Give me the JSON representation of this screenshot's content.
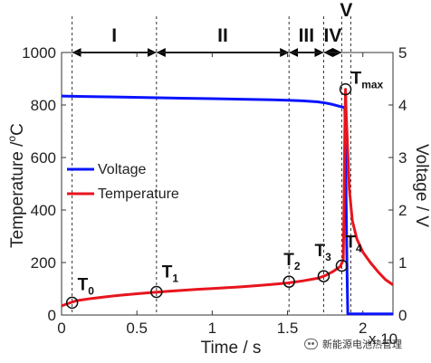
{
  "chart_data": {
    "type": "line",
    "xlabel": "Time / s",
    "ylabel_left": "Temperature /°C",
    "ylabel_left_prefix": "Temperature /",
    "ylabel_left_degree": "o",
    "ylabel_left_unit": "C",
    "ylabel_right": "Voltage / V",
    "xlim": [
      0,
      2.2
    ],
    "ylim_left": [
      0,
      1000
    ],
    "ylim_right": [
      0,
      5
    ],
    "x_ticks": [
      "0",
      "0.5",
      "1",
      "1.5",
      "2"
    ],
    "x_tick_values": [
      0,
      0.5,
      1,
      1.5,
      2
    ],
    "y_left_ticks": [
      "0",
      "200",
      "400",
      "600",
      "800",
      "1000"
    ],
    "y_left_tick_values": [
      0,
      200,
      400,
      600,
      800,
      1000
    ],
    "y_right_ticks": [
      "0",
      "1",
      "2",
      "3",
      "4",
      "5"
    ],
    "y_right_tick_values": [
      0,
      1,
      2,
      3,
      4,
      5
    ],
    "x_multiplier": "x 10",
    "grid": false,
    "legend_position": "left",
    "series": [
      {
        "name": "Voltage",
        "axis": "right",
        "color": "#0a14ff",
        "x": [
          0,
          0.2,
          0.4,
          0.6,
          0.8,
          1.0,
          1.2,
          1.4,
          1.5,
          1.6,
          1.7,
          1.75,
          1.8,
          1.85,
          1.88,
          1.885,
          1.89,
          1.895,
          1.9,
          2.0,
          2.1,
          2.2
        ],
        "y": [
          4.17,
          4.16,
          4.15,
          4.14,
          4.13,
          4.12,
          4.11,
          4.1,
          4.09,
          4.08,
          4.06,
          4.04,
          4.01,
          3.97,
          3.95,
          3.2,
          2.0,
          0.8,
          0.02,
          0.02,
          0.02,
          0.02
        ]
      },
      {
        "name": "Temperature",
        "axis": "left",
        "color": "#e8141e",
        "x": [
          0,
          0.05,
          0.1,
          0.2,
          0.3,
          0.4,
          0.5,
          0.6,
          0.7,
          0.8,
          0.9,
          1.0,
          1.1,
          1.2,
          1.3,
          1.4,
          1.5,
          1.6,
          1.7,
          1.75,
          1.8,
          1.85,
          1.87,
          1.875,
          1.88,
          1.885,
          1.89,
          1.9,
          1.91,
          1.93,
          1.96,
          2.0,
          2.05,
          2.1,
          2.15,
          2.2
        ],
        "y": [
          35,
          45,
          55,
          63,
          70,
          76,
          81,
          86,
          90,
          94,
          98,
          101,
          104,
          108,
          112,
          117,
          122,
          130,
          140,
          150,
          165,
          185,
          210,
          400,
          700,
          860,
          760,
          620,
          480,
          360,
          290,
          240,
          200,
          165,
          135,
          115
        ]
      }
    ],
    "regions": [
      {
        "label": "I",
        "start": 0.07,
        "end": 0.63
      },
      {
        "label": "II",
        "start": 0.63,
        "end": 1.51
      },
      {
        "label": "III",
        "start": 1.51,
        "end": 1.74
      },
      {
        "label": "IV",
        "start": 1.74,
        "end": 1.86
      },
      {
        "label": "V",
        "start": 1.86,
        "end": 1.92
      }
    ],
    "annotations": [
      {
        "label": "T",
        "sub": "0",
        "x": 0.07,
        "y": 47
      },
      {
        "label": "T",
        "sub": "1",
        "x": 0.63,
        "y": 88
      },
      {
        "label": "T",
        "sub": "2",
        "x": 1.51,
        "y": 127
      },
      {
        "label": "T",
        "sub": "3",
        "x": 1.74,
        "y": 148
      },
      {
        "label": "T",
        "sub": "4",
        "x": 1.86,
        "y": 188
      },
      {
        "label": "T",
        "sub": "max",
        "x": 1.885,
        "y": 860
      }
    ]
  },
  "watermark": "新能源电池热管理"
}
